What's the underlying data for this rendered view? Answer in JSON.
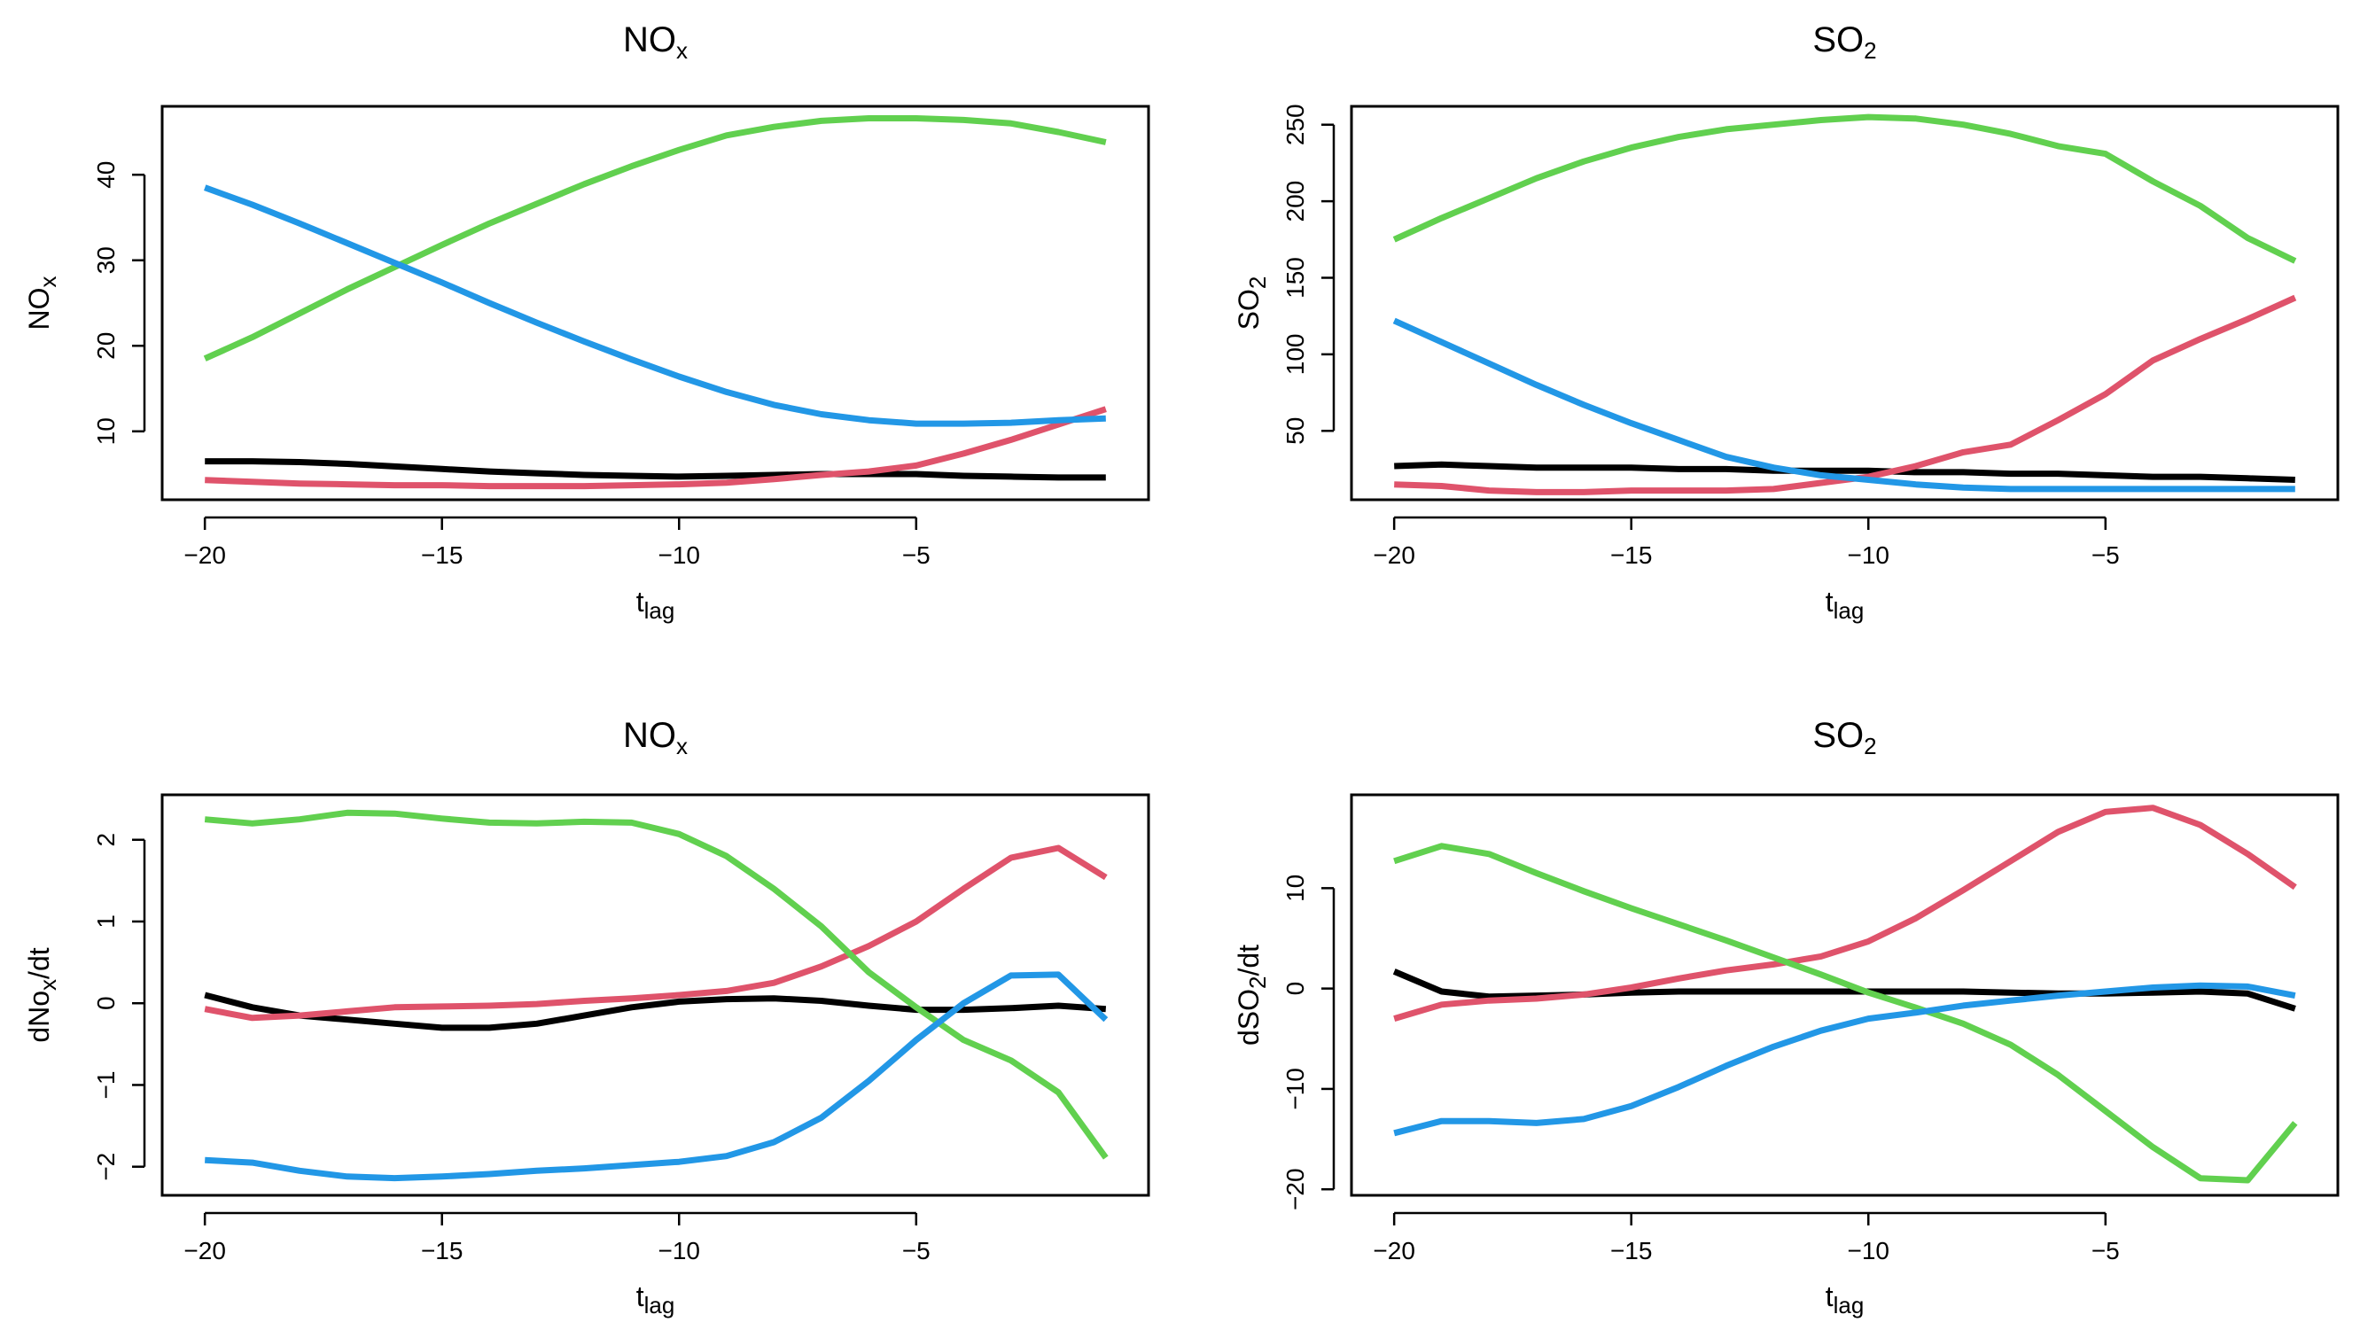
{
  "chart_data": [
    {
      "type": "line",
      "title": "NO",
      "title_sub": "x",
      "xlabel": "t",
      "xlabel_sub": "lag",
      "ylabel": "NO",
      "ylabel_sub": "x",
      "ylabel_suffix": "",
      "xlim": [
        -20.9,
        -0.1
      ],
      "ylim": [
        2,
        48
      ],
      "xticks": [
        -20,
        -15,
        -10,
        -5
      ],
      "yticks": [
        10,
        20,
        30,
        40
      ],
      "x": [
        -20,
        -19,
        -18,
        -17,
        -16,
        -15,
        -14,
        -13,
        -12,
        -11,
        -10,
        -9,
        -8,
        -7,
        -6,
        -5,
        -4,
        -3,
        -2,
        -1
      ],
      "series": [
        {
          "name": "black",
          "color": "#000000",
          "values": [
            6.5,
            6.5,
            6.4,
            6.2,
            5.9,
            5.6,
            5.3,
            5.1,
            4.9,
            4.8,
            4.7,
            4.8,
            4.9,
            5.0,
            5.0,
            5.0,
            4.8,
            4.7,
            4.6,
            4.6
          ]
        },
        {
          "name": "red",
          "color": "#DF536B",
          "values": [
            4.3,
            4.1,
            3.9,
            3.8,
            3.7,
            3.7,
            3.6,
            3.6,
            3.6,
            3.7,
            3.8,
            4.0,
            4.4,
            4.9,
            5.3,
            6.0,
            7.4,
            9.0,
            10.8,
            12.6
          ]
        },
        {
          "name": "green",
          "color": "#61D04F",
          "values": [
            18.5,
            21.0,
            23.8,
            26.6,
            29.2,
            31.8,
            34.3,
            36.6,
            38.9,
            41.0,
            42.9,
            44.6,
            45.6,
            46.3,
            46.6,
            46.6,
            46.4,
            46.0,
            45.0,
            43.8
          ]
        },
        {
          "name": "blue",
          "color": "#2297E6",
          "values": [
            38.5,
            36.5,
            34.3,
            32.0,
            29.7,
            27.4,
            25.0,
            22.7,
            20.5,
            18.4,
            16.4,
            14.6,
            13.1,
            12.0,
            11.3,
            10.9,
            10.9,
            11.0,
            11.3,
            11.5
          ]
        }
      ]
    },
    {
      "type": "line",
      "title": "SO",
      "title_sub": "2",
      "xlabel": "t",
      "xlabel_sub": "lag",
      "ylabel": "SO",
      "ylabel_sub": "2",
      "ylabel_suffix": "",
      "xlim": [
        -20.9,
        -0.1
      ],
      "ylim": [
        5,
        262
      ],
      "xticks": [
        -20,
        -15,
        -10,
        -5
      ],
      "yticks": [
        50,
        100,
        150,
        200,
        250
      ],
      "x": [
        -20,
        -19,
        -18,
        -17,
        -16,
        -15,
        -14,
        -13,
        -12,
        -11,
        -10,
        -9,
        -8,
        -7,
        -6,
        -5,
        -4,
        -3,
        -2,
        -1
      ],
      "series": [
        {
          "name": "black",
          "color": "#000000",
          "values": [
            27,
            28,
            27,
            26,
            26,
            26,
            25,
            25,
            24,
            24,
            24,
            23,
            23,
            22,
            22,
            21,
            20,
            20,
            19,
            18
          ]
        },
        {
          "name": "red",
          "color": "#DF536B",
          "values": [
            15,
            14,
            11,
            10,
            10,
            11,
            11,
            11,
            12,
            16,
            20,
            27,
            36,
            41,
            57,
            74,
            96,
            110,
            123,
            137
          ]
        },
        {
          "name": "green",
          "color": "#61D04F",
          "values": [
            175,
            189,
            202,
            215,
            226,
            235,
            242,
            247,
            250,
            253,
            255,
            254,
            250,
            244,
            236,
            231,
            213,
            197,
            176,
            161
          ]
        },
        {
          "name": "blue",
          "color": "#2297E6",
          "values": [
            122,
            108,
            94,
            80,
            67,
            55,
            44,
            33,
            26,
            21,
            18,
            15,
            13,
            12,
            12,
            12,
            12,
            12,
            12,
            12
          ]
        }
      ]
    },
    {
      "type": "line",
      "title": "NO",
      "title_sub": "x",
      "xlabel": "t",
      "xlabel_sub": "lag",
      "ylabel": "dNo",
      "ylabel_sub": "x",
      "ylabel_suffix": "/dt",
      "xlim": [
        -20.9,
        -0.1
      ],
      "ylim": [
        -2.35,
        2.55
      ],
      "xticks": [
        -20,
        -15,
        -10,
        -5
      ],
      "yticks": [
        -2,
        -1,
        0,
        1,
        2
      ],
      "x": [
        -20,
        -19,
        -18,
        -17,
        -16,
        -15,
        -14,
        -13,
        -12,
        -11,
        -10,
        -9,
        -8,
        -7,
        -6,
        -5,
        -4,
        -3,
        -2,
        -1
      ],
      "series": [
        {
          "name": "black",
          "color": "#000000",
          "values": [
            0.1,
            -0.05,
            -0.15,
            -0.2,
            -0.25,
            -0.3,
            -0.3,
            -0.25,
            -0.15,
            -0.05,
            0.02,
            0.05,
            0.06,
            0.03,
            -0.03,
            -0.08,
            -0.08,
            -0.06,
            -0.03,
            -0.07
          ]
        },
        {
          "name": "red",
          "color": "#DF536B",
          "values": [
            -0.07,
            -0.18,
            -0.15,
            -0.1,
            -0.05,
            -0.04,
            -0.03,
            -0.01,
            0.03,
            0.06,
            0.1,
            0.15,
            0.25,
            0.45,
            0.7,
            1.0,
            1.4,
            1.78,
            1.9,
            1.54
          ]
        },
        {
          "name": "green",
          "color": "#61D04F",
          "values": [
            2.25,
            2.2,
            2.25,
            2.33,
            2.32,
            2.26,
            2.21,
            2.2,
            2.22,
            2.21,
            2.07,
            1.8,
            1.4,
            0.94,
            0.38,
            -0.05,
            -0.45,
            -0.7,
            -1.09,
            -1.89
          ]
        },
        {
          "name": "blue",
          "color": "#2297E6",
          "values": [
            -1.92,
            -1.95,
            -2.05,
            -2.12,
            -2.14,
            -2.12,
            -2.09,
            -2.05,
            -2.02,
            -1.98,
            -1.94,
            -1.87,
            -1.7,
            -1.4,
            -0.95,
            -0.45,
            0.0,
            0.34,
            0.35,
            -0.2
          ]
        }
      ]
    },
    {
      "type": "line",
      "title": "SO",
      "title_sub": "2",
      "xlabel": "t",
      "xlabel_sub": "lag",
      "ylabel": "dSO",
      "ylabel_sub": "2",
      "ylabel_suffix": "/dt",
      "xlim": [
        -20.9,
        -0.1
      ],
      "ylim": [
        -20.6,
        19.3
      ],
      "xticks": [
        -20,
        -15,
        -10,
        -5
      ],
      "yticks": [
        -20,
        -10,
        0,
        10
      ],
      "x": [
        -20,
        -19,
        -18,
        -17,
        -16,
        -15,
        -14,
        -13,
        -12,
        -11,
        -10,
        -9,
        -8,
        -7,
        -6,
        -5,
        -4,
        -3,
        -2,
        -1
      ],
      "series": [
        {
          "name": "black",
          "color": "#000000",
          "values": [
            1.7,
            -0.3,
            -0.8,
            -0.7,
            -0.6,
            -0.4,
            -0.3,
            -0.3,
            -0.3,
            -0.3,
            -0.3,
            -0.3,
            -0.3,
            -0.4,
            -0.5,
            -0.5,
            -0.4,
            -0.3,
            -0.5,
            -2.0
          ]
        },
        {
          "name": "red",
          "color": "#DF536B",
          "values": [
            -3.0,
            -1.6,
            -1.2,
            -1.0,
            -0.6,
            0.1,
            1.0,
            1.8,
            2.4,
            3.2,
            4.7,
            7.0,
            9.8,
            12.7,
            15.6,
            17.6,
            18.0,
            16.3,
            13.4,
            10.1
          ]
        },
        {
          "name": "green",
          "color": "#61D04F",
          "values": [
            12.7,
            14.2,
            13.4,
            11.5,
            9.7,
            8.0,
            6.4,
            4.8,
            3.1,
            1.4,
            -0.4,
            -1.9,
            -3.5,
            -5.6,
            -8.6,
            -12.2,
            -15.8,
            -18.9,
            -19.1,
            -13.4
          ]
        },
        {
          "name": "blue",
          "color": "#2297E6",
          "values": [
            -14.4,
            -13.2,
            -13.2,
            -13.4,
            -13.0,
            -11.7,
            -9.8,
            -7.7,
            -5.8,
            -4.2,
            -3.0,
            -2.4,
            -1.7,
            -1.2,
            -0.7,
            -0.3,
            0.1,
            0.3,
            0.2,
            -0.7
          ]
        }
      ]
    }
  ]
}
